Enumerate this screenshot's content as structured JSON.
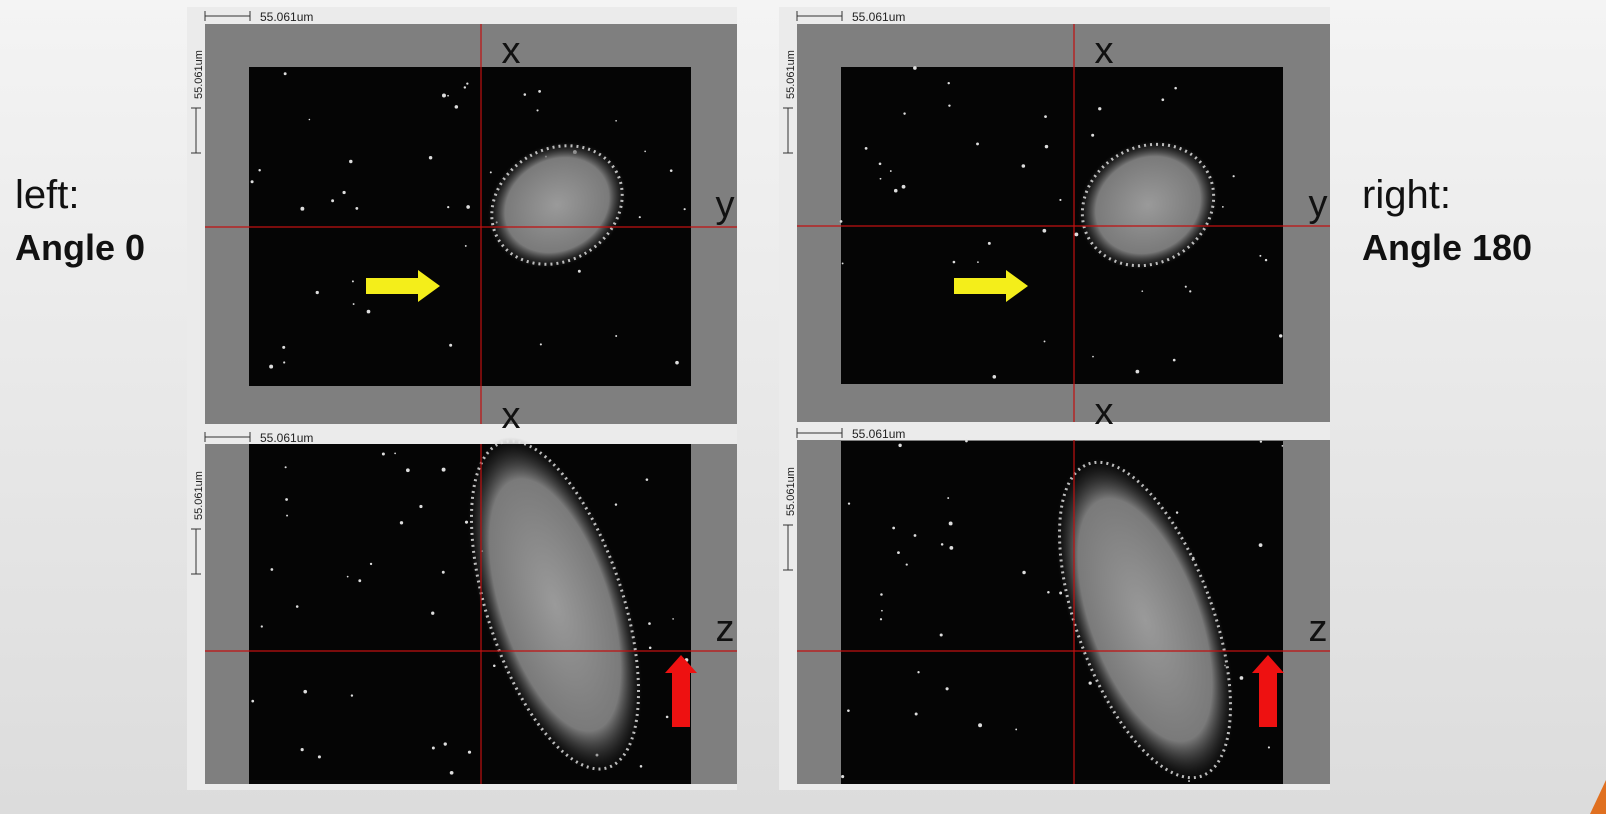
{
  "left_caption": {
    "line1": "left:",
    "line2": "Angle 0"
  },
  "right_caption": {
    "line1": "right:",
    "line2": "Angle 180"
  },
  "panels": [
    {
      "scale_label": "55.061um",
      "vertical_scale_label": "55.061um",
      "top_axis": "x",
      "side_axis": "y",
      "bottom_axis": "x"
    },
    {
      "scale_label": "55.061um",
      "vertical_scale_label": "55.061um",
      "side_axis": "z"
    },
    {
      "scale_label": "55.061um",
      "vertical_scale_label": "55.061um",
      "top_axis": "x",
      "side_axis": "y",
      "bottom_axis": "x"
    },
    {
      "scale_label": "55.061um",
      "vertical_scale_label": "55.061um",
      "side_axis": "z"
    }
  ]
}
